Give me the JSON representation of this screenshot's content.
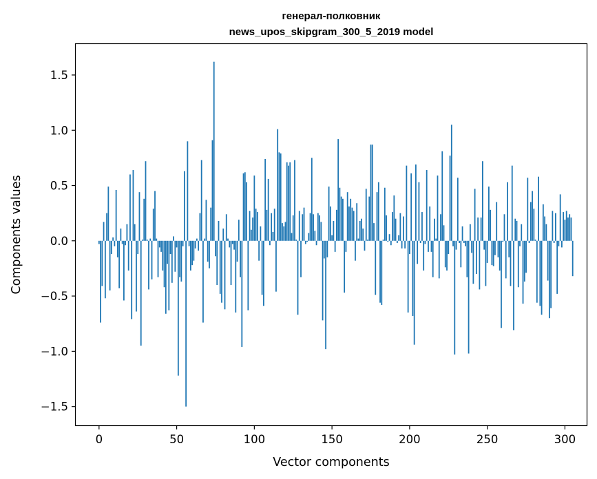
{
  "chart_data": {
    "type": "bar",
    "title": "генерал-полковник",
    "subtitle": "news_upos_skipgram_300_5_2019 model",
    "xlabel": "Vector components",
    "ylabel": "Components values",
    "xlim": [
      -15,
      314
    ],
    "ylim": [
      -1.67,
      1.78
    ],
    "x_ticks": [
      0,
      50,
      100,
      150,
      200,
      250,
      300
    ],
    "y_ticks": [
      -1.5,
      -1.0,
      -0.5,
      0.0,
      0.5,
      1.0,
      1.5
    ],
    "y_tick_labels": [
      "−1.5",
      "−1.0",
      "−0.5",
      "0.0",
      "0.5",
      "1.0",
      "1.5"
    ],
    "bar_color": "#1f77b4",
    "grid": false,
    "values": [
      -0.03,
      -0.74,
      -0.41,
      0.17,
      -0.52,
      0.25,
      0.49,
      -0.45,
      -0.12,
      0.03,
      -0.05,
      0.46,
      -0.15,
      -0.43,
      0.11,
      -0.03,
      -0.54,
      -0.04,
      0.15,
      -0.27,
      0.6,
      -0.71,
      0.64,
      0.15,
      -0.64,
      -0.12,
      0.44,
      -0.95,
      0.01,
      0.38,
      0.72,
      0.01,
      -0.44,
      0.02,
      -0.35,
      0.29,
      0.45,
      0.02,
      -0.33,
      -0.06,
      -0.1,
      -0.27,
      -0.42,
      -0.66,
      -0.21,
      -0.63,
      -0.12,
      -0.38,
      0.04,
      -0.28,
      -0.06,
      -1.22,
      -0.33,
      -0.37,
      -0.05,
      0.63,
      -1.5,
      0.9,
      -0.05,
      -0.27,
      -0.22,
      -0.18,
      -0.07,
      0.02,
      -0.09,
      0.25,
      0.73,
      -0.74,
      0.02,
      0.37,
      -0.19,
      -0.25,
      0.3,
      0.91,
      1.62,
      -0.14,
      -0.4,
      0.18,
      -0.48,
      -0.56,
      0.11,
      -0.62,
      0.24,
      0.02,
      -0.06,
      -0.4,
      -0.03,
      -0.08,
      -0.65,
      -0.19,
      0.19,
      -0.33,
      -0.96,
      0.61,
      0.62,
      0.53,
      -0.63,
      0.27,
      0.1,
      0.21,
      0.59,
      0.29,
      0.26,
      -0.18,
      0.13,
      -0.49,
      -0.59,
      0.74,
      0.28,
      0.56,
      -0.04,
      0.25,
      0.08,
      0.29,
      -0.46,
      1.01,
      0.8,
      0.79,
      0.16,
      0.13,
      0.17,
      0.71,
      0.68,
      0.71,
      0.07,
      0.23,
      0.73,
      0.01,
      -0.67,
      0.27,
      -0.33,
      0.24,
      0.3,
      -0.03,
      -0.01,
      0.07,
      0.25,
      0.75,
      0.24,
      0.09,
      -0.04,
      0.25,
      0.23,
      0.17,
      -0.72,
      -0.16,
      -0.98,
      -0.15,
      0.49,
      0.31,
      0.05,
      0.18,
      -0.1,
      0.28,
      0.92,
      0.48,
      0.4,
      0.38,
      -0.47,
      -0.1,
      0.44,
      0.31,
      0.38,
      0.3,
      0.27,
      -0.18,
      0.34,
      0.02,
      0.18,
      0.2,
      0.11,
      -0.09,
      0.47,
      0.01,
      0.4,
      0.87,
      0.87,
      0.16,
      -0.49,
      0.44,
      0.53,
      -0.56,
      -0.58,
      0.01,
      0.48,
      0.23,
      -0.01,
      0.06,
      -0.04,
      0.26,
      0.41,
      0.2,
      -0.02,
      0.05,
      0.25,
      -0.07,
      0.22,
      -0.07,
      0.68,
      -0.65,
      -0.12,
      0.61,
      -0.68,
      -0.94,
      0.69,
      -0.21,
      0.53,
      -0.02,
      0.26,
      -0.27,
      -0.03,
      0.64,
      -0.1,
      0.31,
      -0.1,
      -0.33,
      0.2,
      0.02,
      0.59,
      -0.34,
      0.24,
      0.81,
      0.14,
      -0.24,
      -0.27,
      -0.12,
      0.77,
      1.05,
      -0.05,
      -1.03,
      -0.08,
      0.57,
      -0.02,
      -0.24,
      0.13,
      -0.02,
      -0.05,
      -0.33,
      -1.02,
      0.15,
      -0.11,
      -0.39,
      0.47,
      -0.3,
      0.21,
      -0.44,
      0.21,
      0.72,
      -0.08,
      -0.41,
      -0.2,
      0.49,
      0.28,
      -0.22,
      -0.23,
      -0.13,
      0.35,
      -0.15,
      -0.27,
      -0.79,
      -0.01,
      0.24,
      -0.34,
      0.53,
      -0.15,
      -0.41,
      0.68,
      -0.81,
      0.2,
      0.18,
      -0.42,
      -0.05,
      0.15,
      -0.57,
      -0.37,
      -0.29,
      0.57,
      -0.02,
      0.35,
      0.45,
      0.29,
      0.01,
      -0.56,
      0.58,
      -0.59,
      -0.67,
      0.33,
      0.22,
      0.15,
      -0.36,
      -0.7,
      -0.61,
      0.27,
      -0.02,
      0.25,
      -0.48,
      -0.05,
      0.42,
      -0.06,
      0.26,
      0.19,
      0.27,
      0.21,
      0.24,
      0.21,
      -0.32
    ]
  }
}
